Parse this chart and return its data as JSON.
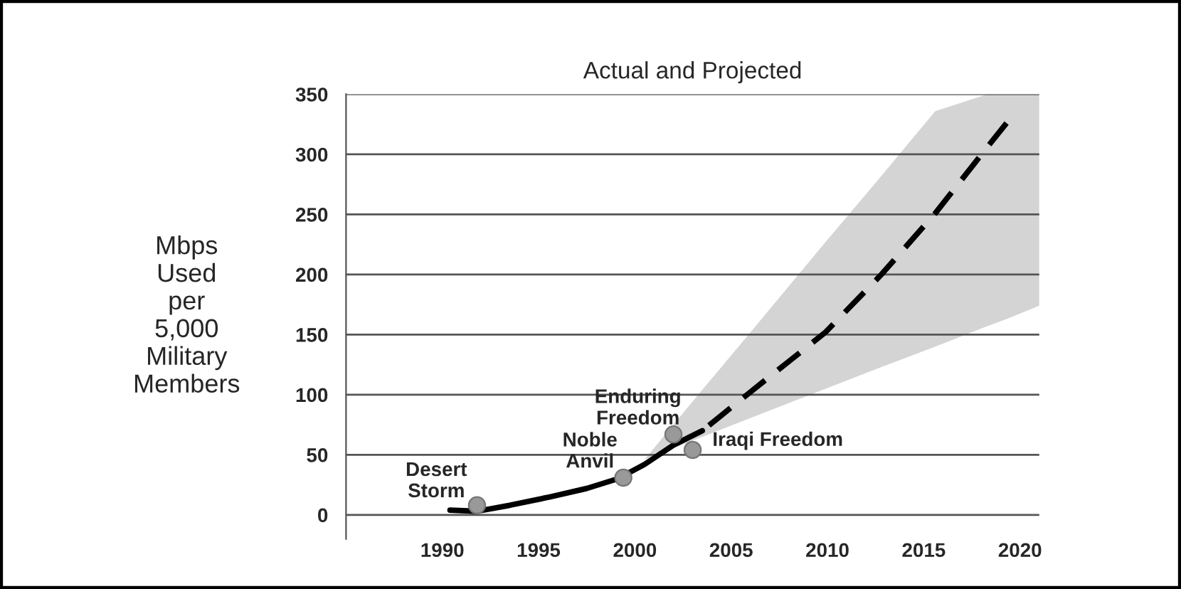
{
  "chart_data": {
    "type": "line",
    "title": "Actual and Projected",
    "ylabel": "Mbps\nUsed\nper\n5,000\nMilitary\nMembers",
    "xlim": [
      1985,
      2021
    ],
    "xticks": [
      {
        "value": 1985,
        "label": null
      },
      1990,
      1995,
      2000,
      2005,
      2010,
      2015,
      2020
    ],
    "ylim": [
      -20,
      350
    ],
    "yticks": [
      0,
      50,
      100,
      150,
      200,
      250,
      300,
      350
    ],
    "grid": "y",
    "series": [
      {
        "color": "#000000",
        "line_style": "solid",
        "x": [
          1990.4,
          1991.8,
          1993.5,
          1995.6,
          1997.5,
          1999.1,
          2000.5,
          2002,
          2003.5
        ],
        "values": [
          4,
          3,
          8,
          15,
          22,
          30,
          42,
          58,
          70
        ]
      },
      {
        "color": "#000000",
        "line_style": "dashed",
        "x": [
          2000.5,
          2003.5,
          2005.9,
          2009.9,
          2012.8,
          2015.6,
          2018.3,
          2019.3,
          2021
        ],
        "values": [
          null,
          70,
          101,
          152,
          200,
          251,
          306,
          326,
          null
        ],
        "lower": [
          46,
          65,
          80,
          105,
          123,
          140,
          157,
          163,
          174
        ],
        "upper": [
          46,
          104,
          150,
          227,
          282,
          336,
          350,
          350,
          350
        ]
      },
      {
        "type": "scatter",
        "color": "#999999",
        "marker": "circle",
        "x": [
          1991.8,
          1999.4,
          2002,
          2003
        ],
        "values": [
          8,
          31,
          67,
          54
        ]
      }
    ],
    "annotations": [
      {
        "text": "Desert\nStorm",
        "x": 1991.8,
        "y": 8
      },
      {
        "text": "Noble\nAnvil",
        "x": 1999.4,
        "y": 31
      },
      {
        "text": "Enduring\nFreedom",
        "x": 2002,
        "y": 67
      },
      {
        "text": "Iraqi Freedom",
        "x": 2003,
        "y": 54
      }
    ]
  }
}
